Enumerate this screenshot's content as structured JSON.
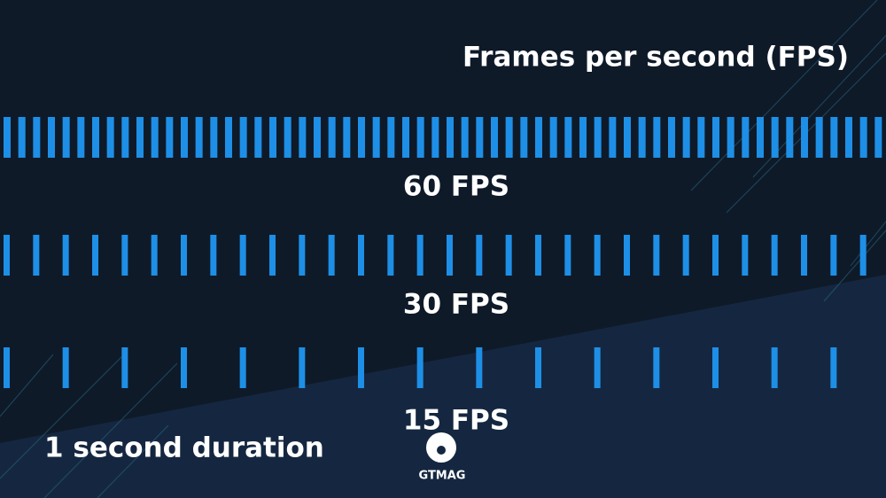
{
  "title": "Frames per second (FPS)",
  "rows": [
    {
      "label": "60 FPS",
      "frames": 60
    },
    {
      "label": "30 FPS",
      "frames": 30
    },
    {
      "label": "15 FPS",
      "frames": 15
    }
  ],
  "footer": "1 second duration",
  "watermark": "GTMAG"
}
